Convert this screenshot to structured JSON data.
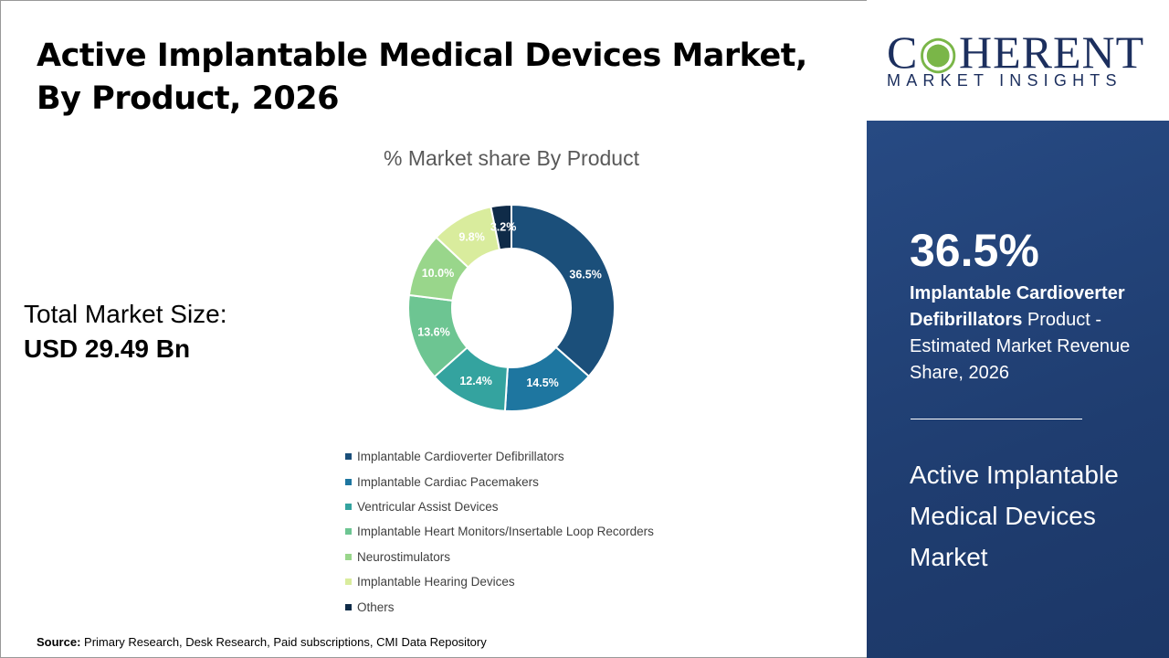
{
  "title": "Active Implantable Medical Devices Market, By Product, 2026",
  "total": {
    "label": "Total Market Size:",
    "value": "USD 29.49 Bn"
  },
  "source": {
    "label": "Source:",
    "text": "Primary Research, Desk Research, Paid subscriptions, CMI Data Repository"
  },
  "logo": {
    "name": "COHERENT",
    "tagline": "MARKET INSIGHTS"
  },
  "highlight": {
    "percent": "36.5%",
    "bold": "Implantable Cardioverter Defibrillators",
    "rest": " Product - Estimated Market Revenue Share, 2026",
    "market": "Active Implantable Medical Devices Market"
  },
  "chart_data": {
    "type": "donut",
    "title": "% Market share By Product",
    "categories": [
      "Implantable Cardioverter Defibrillators",
      "Implantable Cardiac Pacemakers",
      "Ventricular Assist Devices",
      "Implantable Heart Monitors/Insertable Loop Recorders",
      "Neurostimulators",
      "Implantable Hearing Devices",
      "Others"
    ],
    "values": [
      36.5,
      14.5,
      12.4,
      13.6,
      10.0,
      9.8,
      3.2
    ],
    "labels": [
      "36.5%",
      "14.5%",
      "12.4%",
      "13.6%",
      "10.0%",
      "9.8%",
      "3.2%"
    ],
    "colors": [
      "#1b4f7a",
      "#1e76a0",
      "#34a39f",
      "#6dc592",
      "#99d68b",
      "#d9ec9d",
      "#0f2b48"
    ],
    "legend_position": "bottom"
  }
}
